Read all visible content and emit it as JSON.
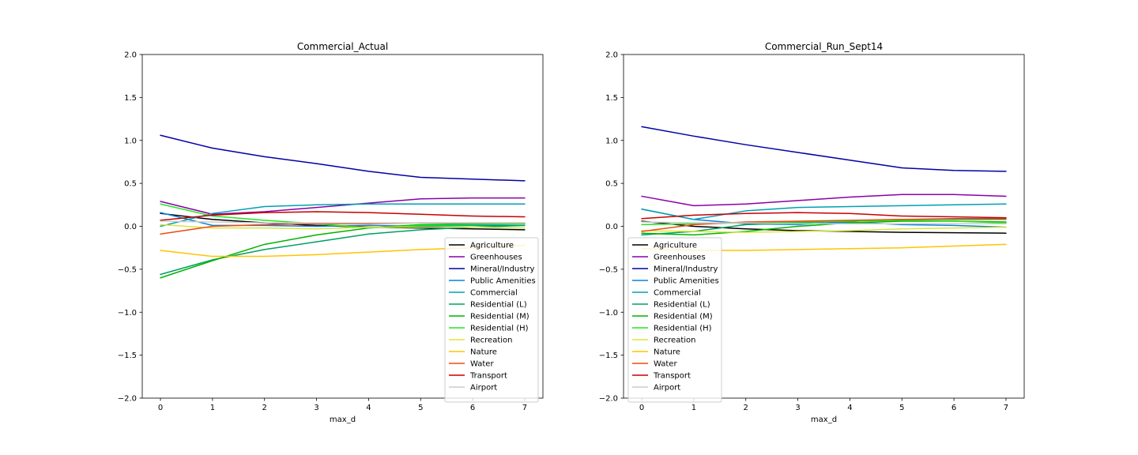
{
  "chart_data": [
    {
      "type": "line",
      "title": "Commercial_Actual",
      "xlabel": "max_d",
      "ylabel": "",
      "xlim": [
        -0.35,
        7.35
      ],
      "ylim": [
        -2.0,
        2.0
      ],
      "x": [
        0,
        1,
        2,
        3,
        4,
        5,
        6,
        7
      ],
      "xticks": [
        "0",
        "1",
        "2",
        "3",
        "4",
        "5",
        "6",
        "7"
      ],
      "yticks": [
        -2.0,
        -1.5,
        -1.0,
        -0.5,
        0.0,
        0.5,
        1.0,
        1.5,
        2.0
      ],
      "ytick_labels": [
        "−2.0",
        "−1.5",
        "−1.0",
        "−0.5",
        "0.0",
        "0.5",
        "1.0",
        "1.5",
        "2.0"
      ],
      "legend_position": "lower right",
      "series": [
        {
          "name": "Agriculture",
          "color": "#000000",
          "values": [
            0.15,
            0.08,
            0.04,
            0.01,
            -0.01,
            -0.02,
            -0.03,
            -0.04
          ]
        },
        {
          "name": "Greenhouses",
          "color": "#8a00a8",
          "values": [
            0.29,
            0.14,
            0.17,
            0.22,
            0.27,
            0.32,
            0.33,
            0.33
          ]
        },
        {
          "name": "Mineral/Industry",
          "color": "#0000a8",
          "values": [
            1.06,
            0.91,
            0.81,
            0.73,
            0.64,
            0.57,
            0.55,
            0.53
          ]
        },
        {
          "name": "Public Amenities",
          "color": "#0a80dc",
          "values": [
            0.16,
            0.01,
            0.01,
            0.0,
            0.01,
            0.0,
            0.01,
            0.01
          ]
        },
        {
          "name": "Commercial",
          "color": "#00a0b4",
          "values": [
            0.0,
            0.15,
            0.23,
            0.25,
            0.26,
            0.26,
            0.26,
            0.26
          ]
        },
        {
          "name": "Residential (L)",
          "color": "#00a060",
          "values": [
            -0.56,
            -0.39,
            -0.27,
            -0.18,
            -0.09,
            -0.04,
            -0.01,
            0.01
          ]
        },
        {
          "name": "Residential (M)",
          "color": "#00b400",
          "values": [
            -0.6,
            -0.4,
            -0.21,
            -0.1,
            -0.02,
            0.02,
            0.03,
            0.03
          ]
        },
        {
          "name": "Residential (H)",
          "color": "#20e620",
          "values": [
            0.26,
            0.12,
            0.07,
            0.03,
            -0.02,
            0.01,
            0.02,
            0.03
          ]
        },
        {
          "name": "Recreation",
          "color": "#d8e63c",
          "values": [
            0.02,
            -0.02,
            -0.02,
            -0.03,
            -0.01,
            -0.01,
            -0.01,
            -0.02
          ]
        },
        {
          "name": "Nature",
          "color": "#ffc400",
          "values": [
            -0.28,
            -0.35,
            -0.35,
            -0.33,
            -0.3,
            -0.27,
            -0.25,
            -0.22
          ]
        },
        {
          "name": "Water",
          "color": "#f04b14",
          "values": [
            -0.09,
            0.0,
            0.02,
            0.03,
            0.03,
            0.04,
            0.04,
            0.04
          ]
        },
        {
          "name": "Transport",
          "color": "#c80000",
          "values": [
            0.07,
            0.13,
            0.16,
            0.17,
            0.16,
            0.14,
            0.12,
            0.11
          ]
        },
        {
          "name": "Airport",
          "color": "#cccccc",
          "values": [
            0.06,
            0.05,
            0.04,
            0.04,
            0.04,
            0.04,
            0.04,
            0.04
          ]
        }
      ]
    },
    {
      "type": "line",
      "title": "Commercial_Run_Sept14",
      "xlabel": "max_d",
      "ylabel": "",
      "xlim": [
        -0.35,
        7.35
      ],
      "ylim": [
        -2.0,
        2.0
      ],
      "x": [
        0,
        1,
        2,
        3,
        4,
        5,
        6,
        7
      ],
      "xticks": [
        "0",
        "1",
        "2",
        "3",
        "4",
        "5",
        "6",
        "7"
      ],
      "yticks": [
        -2.0,
        -1.5,
        -1.0,
        -0.5,
        0.0,
        0.5,
        1.0,
        1.5,
        2.0
      ],
      "ytick_labels": [
        "−2.0",
        "−1.5",
        "−1.0",
        "−0.5",
        "0.0",
        "0.5",
        "1.0",
        "1.5",
        "2.0"
      ],
      "legend_position": "lower left",
      "series": [
        {
          "name": "Agriculture",
          "color": "#000000",
          "values": [
            0.06,
            0.0,
            -0.03,
            -0.05,
            -0.06,
            -0.07,
            -0.075,
            -0.08
          ]
        },
        {
          "name": "Greenhouses",
          "color": "#8a00a8",
          "values": [
            0.35,
            0.24,
            0.26,
            0.3,
            0.34,
            0.37,
            0.37,
            0.35
          ]
        },
        {
          "name": "Mineral/Industry",
          "color": "#0000a8",
          "values": [
            1.16,
            1.05,
            0.95,
            0.86,
            0.77,
            0.68,
            0.65,
            0.64
          ]
        },
        {
          "name": "Public Amenities",
          "color": "#0a80dc",
          "values": [
            0.2,
            0.08,
            0.03,
            0.02,
            0.05,
            0.02,
            0.01,
            -0.01
          ]
        },
        {
          "name": "Commercial",
          "color": "#00a0b4",
          "values": [
            0.2,
            0.08,
            0.18,
            0.22,
            0.23,
            0.24,
            0.25,
            0.26
          ]
        },
        {
          "name": "Residential (L)",
          "color": "#00a060",
          "values": [
            -0.1,
            -0.06,
            0.02,
            0.04,
            0.06,
            0.08,
            0.09,
            0.09
          ]
        },
        {
          "name": "Residential (M)",
          "color": "#00b400",
          "values": [
            -0.08,
            -0.1,
            -0.06,
            0.0,
            0.04,
            0.06,
            0.06,
            0.05
          ]
        },
        {
          "name": "Residential (H)",
          "color": "#20e620",
          "values": [
            0.02,
            0.03,
            0.04,
            0.05,
            0.06,
            0.07,
            0.06,
            0.04
          ]
        },
        {
          "name": "Recreation",
          "color": "#d8e63c",
          "values": [
            -0.05,
            -0.06,
            -0.07,
            -0.06,
            -0.05,
            -0.03,
            -0.02,
            -0.01
          ]
        },
        {
          "name": "Nature",
          "color": "#ffc400",
          "values": [
            -0.26,
            -0.28,
            -0.28,
            -0.27,
            -0.26,
            -0.25,
            -0.23,
            -0.21
          ]
        },
        {
          "name": "Water",
          "color": "#f04b14",
          "values": [
            -0.06,
            0.02,
            0.05,
            0.06,
            0.07,
            0.08,
            0.08,
            0.08
          ]
        },
        {
          "name": "Transport",
          "color": "#c80000",
          "values": [
            0.09,
            0.13,
            0.15,
            0.16,
            0.15,
            0.12,
            0.11,
            0.1
          ]
        },
        {
          "name": "Airport",
          "color": "#cccccc",
          "values": [
            0.05,
            0.04,
            0.04,
            0.03,
            0.03,
            0.03,
            0.03,
            0.03
          ]
        }
      ]
    }
  ]
}
